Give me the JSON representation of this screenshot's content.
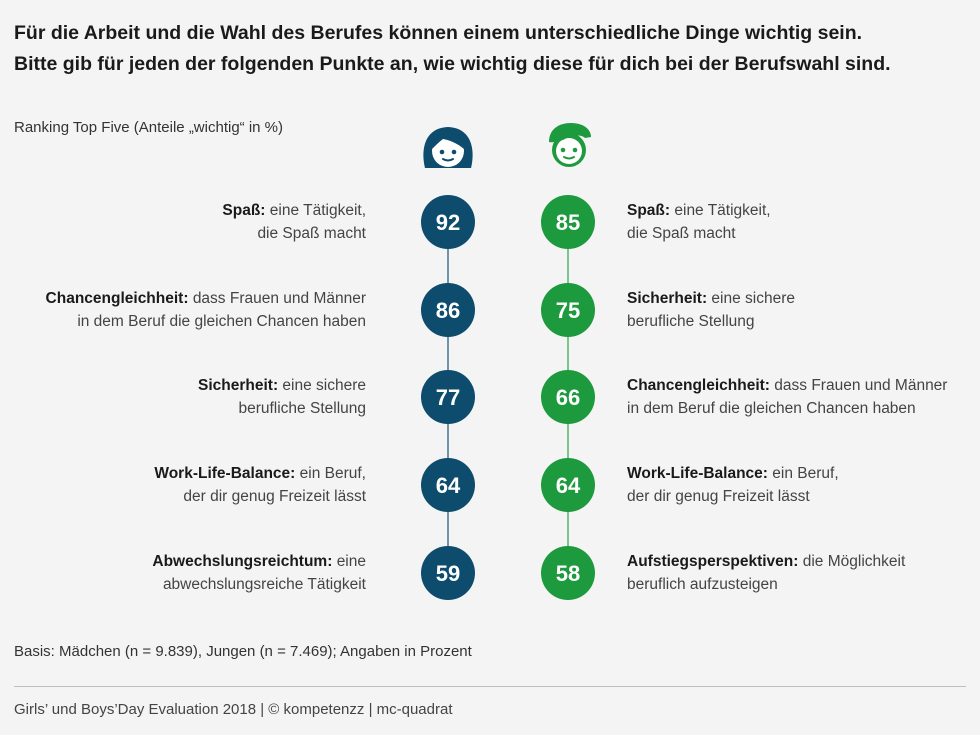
{
  "header": {
    "title_line1": "Für die Arbeit und die Wahl des Berufes können einem unterschiedliche Dinge wichtig sein.",
    "title_line2": "Bitte gib für jeden der folgenden Punkte an, wie wichtig diese für dich bei der Berufswahl sind.",
    "subtitle": "Ranking Top Five (Anteile „wichtig“ in %)"
  },
  "footer": {
    "basis": "Basis: Mädchen (n = 9.839), Jungen (n = 7.469); Angaben in Prozent",
    "source": "Girls’ und Boys’Day Evaluation 2018 | © kompetenzz | mc-quadrat"
  },
  "colors": {
    "girls": "#0e4c6e",
    "boys": "#1e9a3e",
    "girls_line": "#6f93a8",
    "boys_line": "#7cc58e"
  },
  "icons": {
    "girls": "girl-face-icon",
    "boys": "boy-face-icon"
  },
  "chart_data": {
    "type": "table",
    "series": [
      {
        "group": "girls",
        "values": [
          92,
          86,
          77,
          64,
          59
        ],
        "items": [
          {
            "term": "Spaß:",
            "desc_line1": "eine Tätigkeit,",
            "desc_line2": "die Spaß macht"
          },
          {
            "term": "Chancengleichheit:",
            "desc_line1": "dass Frauen und Männer",
            "desc_line2": "in dem Beruf die gleichen Chancen haben"
          },
          {
            "term": "Sicherheit:",
            "desc_line1": "eine sichere",
            "desc_line2": "berufliche Stellung"
          },
          {
            "term": "Work-Life-Balance:",
            "desc_line1": "ein Beruf,",
            "desc_line2": "der dir genug Freizeit lässt"
          },
          {
            "term": "Abwechslungsreichtum:",
            "desc_line1": "eine",
            "desc_line2": "abwechslungsreiche Tätigkeit"
          }
        ]
      },
      {
        "group": "boys",
        "values": [
          85,
          75,
          66,
          64,
          58
        ],
        "items": [
          {
            "term": "Spaß:",
            "desc_line1": "eine Tätigkeit,",
            "desc_line2": "die Spaß macht"
          },
          {
            "term": "Sicherheit:",
            "desc_line1": "eine sichere",
            "desc_line2": "berufliche Stellung"
          },
          {
            "term": "Chancengleichheit:",
            "desc_line1": "dass Frauen und Männer",
            "desc_line2": "in dem Beruf die gleichen Chancen haben"
          },
          {
            "term": "Work-Life-Balance:",
            "desc_line1": "ein Beruf,",
            "desc_line2": "der dir genug Freizeit lässt"
          },
          {
            "term": "Aufstiegsperspektiven:",
            "desc_line1": "die Möglichkeit",
            "desc_line2": "beruflich aufzusteigen"
          }
        ]
      }
    ]
  }
}
